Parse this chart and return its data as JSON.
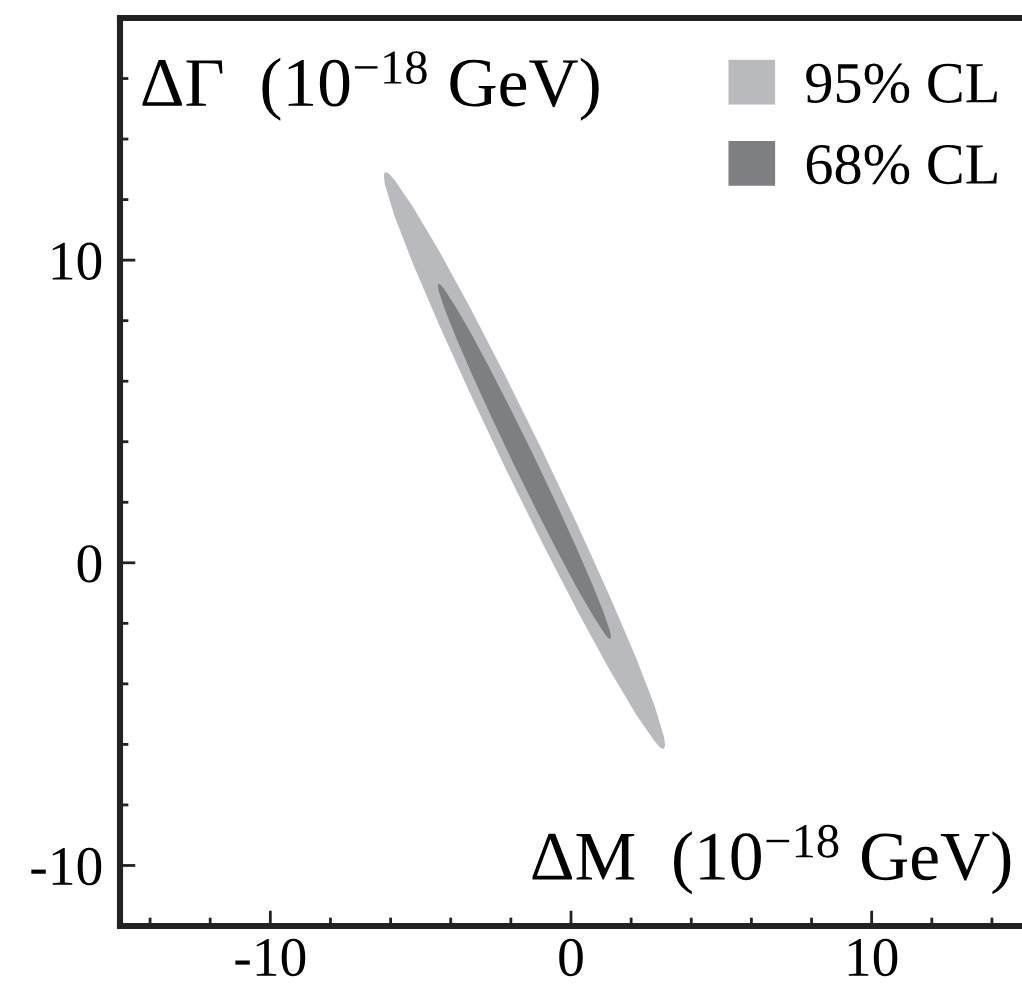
{
  "chart_data": {
    "type": "area",
    "xlabel": "ΔM  (10$^{−18}$ GeV)",
    "ylabel": "ΔΓ  (10$^{−18}$ GeV)",
    "xlim": [
      -15,
      15
    ],
    "ylim": [
      -12,
      18
    ],
    "xticks": [
      {
        "value": -14,
        "label": null
      },
      {
        "value": -12,
        "label": null
      },
      -10,
      {
        "value": -8,
        "label": null
      },
      {
        "value": -6,
        "label": null
      },
      {
        "value": -4,
        "label": null
      },
      {
        "value": -2,
        "label": null
      },
      0,
      {
        "value": 2,
        "label": null
      },
      {
        "value": 4,
        "label": null
      },
      {
        "value": 6,
        "label": null
      },
      {
        "value": 8,
        "label": null
      },
      10,
      {
        "value": 12,
        "label": null
      },
      {
        "value": 14,
        "label": null
      }
    ],
    "yticks": [
      -10,
      {
        "value": -8,
        "label": null
      },
      {
        "value": -6,
        "label": null
      },
      {
        "value": -4,
        "label": null
      },
      {
        "value": -2,
        "label": null
      },
      0,
      {
        "value": 2,
        "label": null
      },
      {
        "value": 4,
        "label": null
      },
      {
        "value": 6,
        "label": null
      },
      {
        "value": 8,
        "label": null
      },
      10,
      {
        "value": 12,
        "label": null
      },
      {
        "value": 14,
        "label": null
      },
      {
        "value": 16,
        "label": null
      }
    ],
    "legend": "top right",
    "series": [
      {
        "name": "95% CL",
        "color": "#b9babe",
        "x": [
          3.09,
          3.13,
          3.09,
          2.78,
          2.17,
          1.3,
          0.24,
          -0.94,
          -2.16,
          -3.34,
          -4.4,
          -5.27,
          -5.88,
          -6.07,
          -6.19,
          -6.23,
          -6.19,
          -5.88,
          -5.27,
          -4.4,
          -3.34,
          -2.16,
          -0.94,
          0.24,
          1.3,
          2.17,
          2.78,
          2.97
        ],
        "values": [
          -6.15,
          -6.03,
          -5.75,
          -4.72,
          -3.15,
          -1.13,
          1.2,
          3.68,
          6.13,
          8.4,
          10.33,
          11.78,
          12.66,
          12.87,
          12.91,
          12.79,
          12.51,
          11.48,
          9.91,
          7.89,
          5.56,
          3.08,
          0.63,
          -1.64,
          -3.57,
          -5.02,
          -5.9,
          -6.11
        ]
      },
      {
        "name": "68% CL",
        "color": "#7e7f83",
        "x": [
          1.31,
          1.33,
          1.3,
          1.09,
          0.7,
          0.16,
          -0.5,
          -1.23,
          -1.98,
          -2.7,
          -3.34,
          -3.87,
          -4.23,
          -4.34,
          -4.41,
          -4.43,
          -4.4,
          -4.19,
          -3.8,
          -3.26,
          -2.6,
          -1.87,
          -1.12,
          -0.4,
          0.24,
          0.77,
          1.13,
          1.24
        ],
        "values": [
          -2.52,
          -2.45,
          -2.28,
          -1.65,
          -0.69,
          0.55,
          1.98,
          3.51,
          5.02,
          6.42,
          7.61,
          8.51,
          9.06,
          9.19,
          9.22,
          9.15,
          8.98,
          8.35,
          7.39,
          6.15,
          4.72,
          3.19,
          1.68,
          0.28,
          -0.91,
          -1.81,
          -2.36,
          -2.49
        ]
      }
    ]
  }
}
